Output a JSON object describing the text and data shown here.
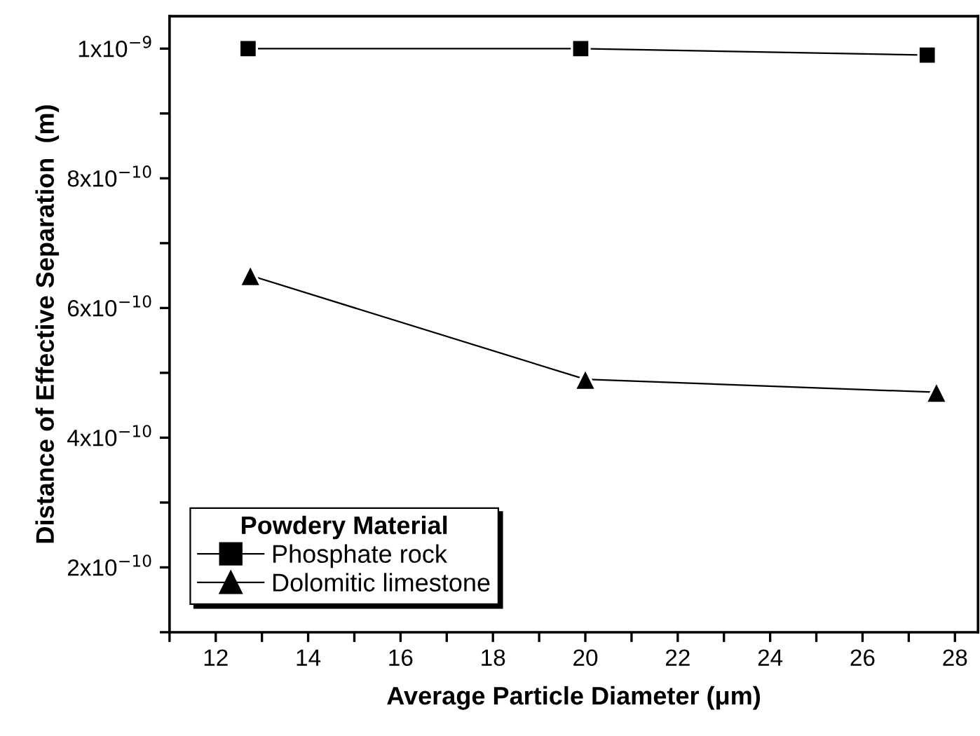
{
  "chart_data": {
    "type": "line",
    "xlabel": "Average Particle Diameter (μm)",
    "ylabel": "Distance of Effective Separation  (m)",
    "legend_title": "Powdery Material",
    "legend": "bottom left",
    "line_style": "solid",
    "grid": false,
    "xlim": [
      11,
      28.5
    ],
    "ylim": [
      1e-10,
      1.05e-09
    ],
    "xticks": [
      {
        "value": 11,
        "label": null
      },
      12,
      {
        "value": 13,
        "label": null
      },
      14,
      {
        "value": 15,
        "label": null
      },
      16,
      {
        "value": 17,
        "label": null
      },
      18,
      {
        "value": 19,
        "label": null
      },
      20,
      {
        "value": 21,
        "label": null
      },
      22,
      {
        "value": 23,
        "label": null
      },
      24,
      {
        "value": 25,
        "label": null
      },
      26,
      {
        "value": 27,
        "label": null
      },
      28
    ],
    "yticks": [
      {
        "value": 1e-10,
        "label": null
      },
      {
        "value": 2e-10,
        "label": "2x10$^{−10}$"
      },
      {
        "value": 3e-10,
        "label": null
      },
      {
        "value": 4e-10,
        "label": "4x10$^{−10}$"
      },
      {
        "value": 5e-10,
        "label": null
      },
      {
        "value": 6e-10,
        "label": "6x10$^{−10}$"
      },
      {
        "value": 7e-10,
        "label": null
      },
      {
        "value": 8e-10,
        "label": "8x10$^{−10}$"
      },
      {
        "value": 9e-10,
        "label": null
      },
      {
        "value": 1e-09,
        "label": "1x10$^{−9}$"
      }
    ],
    "series": [
      {
        "name": "Phosphate rock",
        "color": "#000000",
        "marker": "square",
        "x": [
          12.7,
          19.9,
          27.4
        ],
        "values": [
          1e-09,
          1e-09,
          9.9e-10
        ]
      },
      {
        "name": "Dolomitic limestone",
        "color": "#000000",
        "marker": "triangle",
        "x": [
          12.75,
          20.0,
          27.6
        ],
        "values": [
          6.5e-10,
          4.9e-10,
          4.7e-10
        ]
      }
    ]
  }
}
